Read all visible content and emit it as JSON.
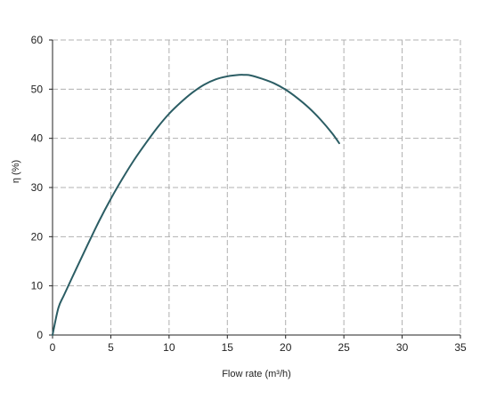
{
  "chart_data": {
    "type": "line",
    "title": "",
    "xlabel": "Flow rate (m³/h)",
    "ylabel": "η (%)",
    "xlim": [
      0,
      35
    ],
    "ylim": [
      0,
      60
    ],
    "xticks": [
      0,
      5,
      10,
      15,
      20,
      25,
      30,
      35
    ],
    "yticks": [
      0,
      10,
      20,
      30,
      40,
      50,
      60
    ],
    "xtick_labels": [
      "0",
      "5",
      "10",
      "15",
      "20",
      "25",
      "30",
      "35"
    ],
    "ytick_labels": [
      "0",
      "10",
      "20",
      "30",
      "40",
      "50",
      "60"
    ],
    "grid": true,
    "legend": "none",
    "series": [
      {
        "color": "#2b5d64",
        "x": [
          0,
          0.5,
          1,
          2,
          3,
          4,
          5,
          6,
          7,
          8,
          9,
          10,
          11,
          12,
          13,
          14,
          15,
          16,
          16.5,
          17,
          18,
          19,
          20,
          21,
          22,
          23,
          24,
          24.6
        ],
        "y": [
          0,
          5.5,
          8.2,
          13.3,
          18.3,
          23.2,
          27.7,
          31.8,
          35.6,
          39.0,
          42.2,
          45.0,
          47.3,
          49.3,
          50.9,
          52.0,
          52.6,
          52.9,
          52.9,
          52.8,
          52.1,
          51.2,
          49.9,
          48.2,
          46.2,
          43.8,
          41.0,
          39.0
        ]
      }
    ]
  }
}
